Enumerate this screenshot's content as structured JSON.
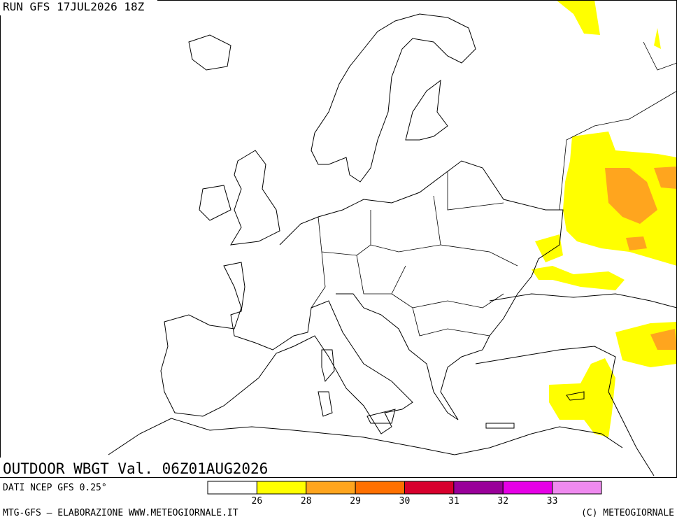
{
  "header": {
    "run": "RUN GFS 17JUL2026 18Z",
    "title": "OUTDOOR WBGT Val. 06Z01AUG2026"
  },
  "footer": {
    "source": "DATI NCEP GFS 0.25°",
    "credit_left": "MTG-GFS — ELABORAZIONE WWW.METEOGIORNALE.IT",
    "credit_right": "(C) METEOGIORNALE"
  },
  "legend": {
    "colors": [
      "#ffffff",
      "#ffff00",
      "#ffa51e",
      "#ff7000",
      "#d7002d",
      "#990099",
      "#e600e6",
      "#ef8aef"
    ],
    "ticks": [
      26,
      28,
      29,
      30,
      31,
      32,
      33
    ]
  }
}
